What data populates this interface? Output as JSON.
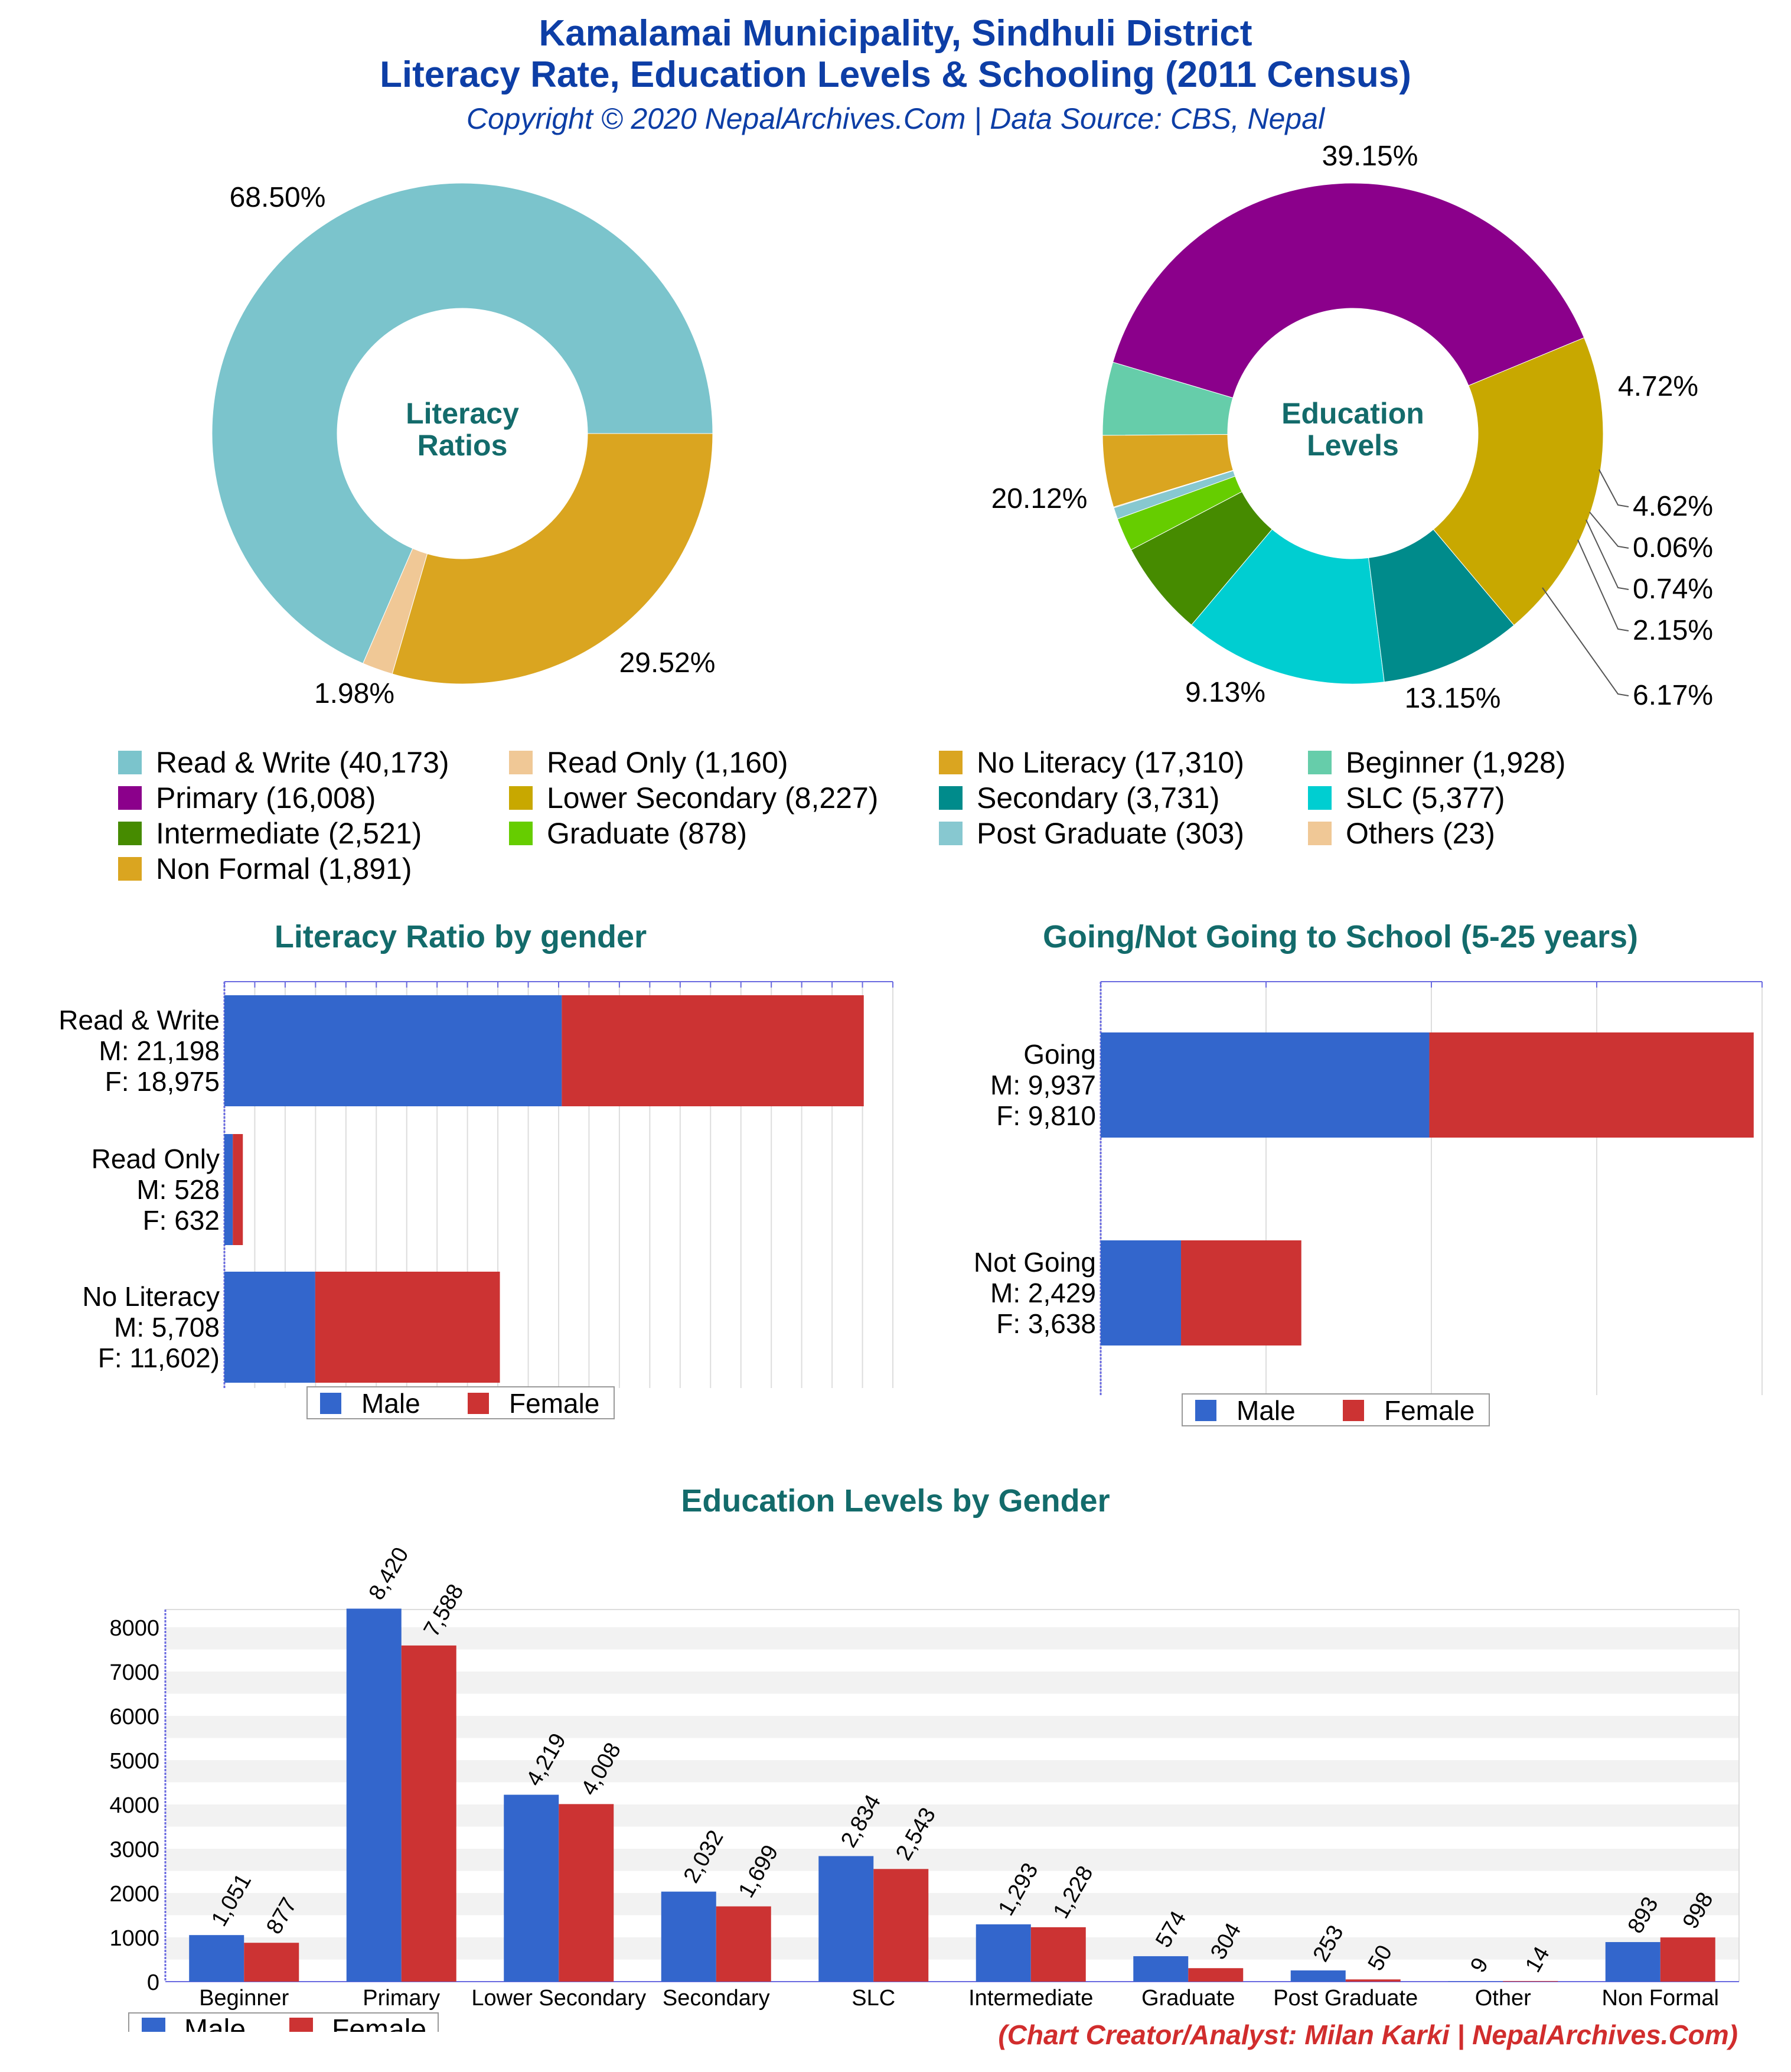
{
  "header": {
    "title_line1": "Kamalamai Municipality, Sindhuli District",
    "title_line2": "Literacy Rate, Education Levels & Schooling (2011 Census)",
    "subtitle": "Copyright © 2020 NepalArchives.Com | Data Source: CBS, Nepal"
  },
  "donuts": {
    "literacy_center": [
      "Literacy",
      "Ratios"
    ],
    "education_center": [
      "Education",
      "Levels"
    ]
  },
  "legend": [
    {
      "label": "Read & Write (40,173)",
      "color": "#7bc4cc"
    },
    {
      "label": "Read Only (1,160)",
      "color": "#f0c896"
    },
    {
      "label": "No Literacy (17,310)",
      "color": "#daa520"
    },
    {
      "label": "Beginner (1,928)",
      "color": "#66cdaa"
    },
    {
      "label": "Primary (16,008)",
      "color": "#8b008b"
    },
    {
      "label": "Lower Secondary (8,227)",
      "color": "#c8a800"
    },
    {
      "label": "Secondary (3,731)",
      "color": "#008b8b"
    },
    {
      "label": "SLC (5,377)",
      "color": "#00ced1"
    },
    {
      "label": "Intermediate (2,521)",
      "color": "#468b00"
    },
    {
      "label": "Graduate (878)",
      "color": "#66cd00"
    },
    {
      "label": "Post Graduate (303)",
      "color": "#87c8d0"
    },
    {
      "label": "Others (23)",
      "color": "#f0c896"
    },
    {
      "label": "Non Formal (1,891)",
      "color": "#daa520"
    }
  ],
  "sections": {
    "literacy_gender_title": "Literacy Ratio by gender",
    "school_title": "Going/Not Going to School (5-25 years)",
    "edu_gender_title": "Education Levels by Gender"
  },
  "legend_gender": {
    "male": "Male",
    "female": "Female",
    "male_color": "#3366cc",
    "female_color": "#cc3333"
  },
  "credit": "(Chart Creator/Analyst: Milan Karki | NepalArchives.Com)",
  "chart_data": [
    {
      "type": "pie",
      "variant": "donut",
      "labels": [
        "Read & Write",
        "Read Only",
        "No Literacy"
      ],
      "values": [
        40173,
        1160,
        17310
      ],
      "percent_labels": [
        "68.50%",
        "1.98%",
        "29.52%"
      ],
      "colors": [
        "#7bc4cc",
        "#f0c896",
        "#daa520"
      ]
    },
    {
      "type": "pie",
      "variant": "donut",
      "labels": [
        "Primary",
        "Beginner",
        "Non Formal",
        "Others",
        "Post Graduate",
        "Graduate",
        "Intermediate",
        "SLC",
        "Secondary",
        "Lower Secondary"
      ],
      "values": [
        16008,
        1928,
        1891,
        23,
        303,
        878,
        2521,
        5377,
        3731,
        8227
      ],
      "percent_labels": [
        "39.15%",
        "4.72%",
        "4.62%",
        "0.06%",
        "0.74%",
        "2.15%",
        "6.17%",
        "13.15%",
        "9.13%",
        "20.12%"
      ],
      "colors": [
        "#8b008b",
        "#66cdaa",
        "#daa520",
        "#f0c896",
        "#87c8d0",
        "#66cd00",
        "#468b00",
        "#00ced1",
        "#008b8b",
        "#c8a800"
      ]
    },
    {
      "type": "bar",
      "orientation": "horizontal",
      "stacked": true,
      "categories": [
        [
          "Read & Write",
          "M: 21,198",
          "F: 18,975"
        ],
        [
          "Read Only",
          "M: 528",
          "F: 632"
        ],
        [
          "No Literacy",
          "M: 5,708",
          "F: 11,602)"
        ]
      ],
      "series": [
        {
          "name": "Male",
          "values": [
            21198,
            528,
            5708
          ]
        },
        {
          "name": "Female",
          "values": [
            18975,
            632,
            11602
          ]
        }
      ],
      "xlim": [
        0,
        42000
      ],
      "legend": "bottom"
    },
    {
      "type": "bar",
      "orientation": "horizontal",
      "stacked": true,
      "categories": [
        [
          "Going",
          "M: 9,937",
          "F: 9,810"
        ],
        [
          "Not Going",
          "M: 2,429",
          "F: 3,638"
        ]
      ],
      "series": [
        {
          "name": "Male",
          "values": [
            9937,
            2429
          ]
        },
        {
          "name": "Female",
          "values": [
            9810,
            3638
          ]
        }
      ],
      "xlim": [
        0,
        20000
      ],
      "legend": "bottom"
    },
    {
      "type": "bar",
      "categories": [
        "Beginner",
        "Primary",
        "Lower Secondary",
        "Secondary",
        "SLC",
        "Intermediate",
        "Graduate",
        "Post Graduate",
        "Other",
        "Non Formal"
      ],
      "series": [
        {
          "name": "Male",
          "values": [
            1051,
            8420,
            4219,
            2032,
            2834,
            1293,
            574,
            253,
            9,
            893
          ],
          "labels": [
            "1,051",
            "8,420",
            "4,219",
            "2,032",
            "2,834",
            "1,293",
            "574",
            "253",
            "9",
            "893"
          ]
        },
        {
          "name": "Female",
          "values": [
            877,
            7588,
            4008,
            1699,
            2543,
            1228,
            304,
            50,
            14,
            998
          ],
          "labels": [
            "877",
            "7,588",
            "4,008",
            "1,699",
            "2,543",
            "1,228",
            "304",
            "50",
            "14",
            "998"
          ]
        }
      ],
      "yticks": [
        "0",
        "1000",
        "2000",
        "3000",
        "4000",
        "5000",
        "6000",
        "7000",
        "8000"
      ],
      "ylim": [
        0,
        8000
      ],
      "legend": "bottom-left"
    }
  ]
}
